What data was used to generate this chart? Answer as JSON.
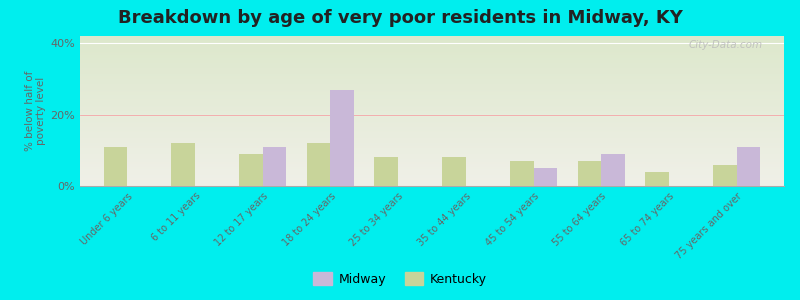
{
  "title": "Breakdown by age of very poor residents in Midway, KY",
  "ylabel": "% below half of\npoverty level",
  "categories": [
    "Under 6 years",
    "6 to 11 years",
    "12 to 17 years",
    "18 to 24 years",
    "25 to 34 years",
    "35 to 44 years",
    "45 to 54 years",
    "55 to 64 years",
    "65 to 74 years",
    "75 years and over"
  ],
  "midway_values": [
    0,
    0,
    11,
    27,
    0,
    0,
    5,
    9,
    0,
    11
  ],
  "kentucky_values": [
    11,
    12,
    9,
    12,
    8,
    8,
    7,
    7,
    4,
    6
  ],
  "midway_color": "#c9b8d8",
  "kentucky_color": "#c8d49a",
  "ylim": [
    0,
    42
  ],
  "yticks": [
    0,
    20,
    40
  ],
  "ytick_labels": [
    "0%",
    "20%",
    "40%"
  ],
  "bg_color": "#00eeee",
  "bar_width": 0.35,
  "title_fontsize": 13,
  "watermark": "City-Data.com",
  "legend_labels": [
    "Midway",
    "Kentucky"
  ]
}
